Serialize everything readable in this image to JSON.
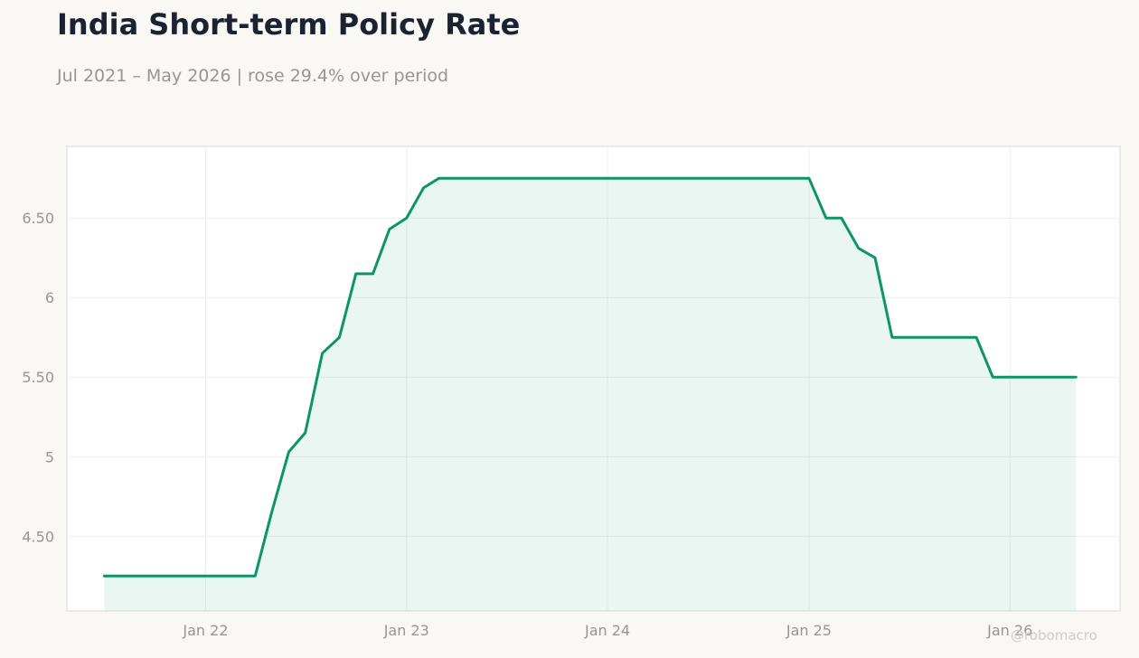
{
  "title": "India Short-term Policy Rate",
  "subtitle": "Jul 2021 – May 2026 | rose 29.4% over period",
  "watermark": "@robomacro",
  "colors": {
    "background": "#f9f8f4",
    "plot_background": "#ffffff",
    "line": "#0e9469",
    "fill": "#e9f4f0",
    "grid": "#eeeeee",
    "tick_text": "#999590",
    "title": "#1b2333"
  },
  "chart_data": {
    "type": "area",
    "title": "India Short-term Policy Rate",
    "xlabel": "",
    "ylabel": "",
    "grid": true,
    "legend": "none",
    "xlim": [
      "2021-04-24",
      "2026-07-20"
    ],
    "ylim": [
      4.03,
      6.95
    ],
    "yticks": [
      4.5,
      5,
      5.5,
      6,
      6.5
    ],
    "ytick_labels": [
      "4.50",
      "5",
      "5.50",
      "6",
      "6.50"
    ],
    "xticks": [
      "2022-01-01",
      "2023-01-01",
      "2024-01-01",
      "2025-01-01",
      "2026-01-01"
    ],
    "xtick_labels": [
      "Jan 22",
      "Jan 23",
      "Jan 24",
      "Jan 25",
      "Jan 26"
    ],
    "series": [
      {
        "values": [
          [
            "2021-07-01",
            4.25
          ],
          [
            "2022-04-01",
            4.25
          ],
          [
            "2022-05-01",
            4.65
          ],
          [
            "2022-06-01",
            5.03
          ],
          [
            "2022-07-01",
            5.15
          ],
          [
            "2022-08-01",
            5.65
          ],
          [
            "2022-09-01",
            5.75
          ],
          [
            "2022-10-01",
            6.15
          ],
          [
            "2022-11-01",
            6.15
          ],
          [
            "2022-12-01",
            6.43
          ],
          [
            "2023-01-01",
            6.5
          ],
          [
            "2023-02-01",
            6.69
          ],
          [
            "2023-03-01",
            6.75
          ],
          [
            "2025-01-01",
            6.75
          ],
          [
            "2025-02-01",
            6.5
          ],
          [
            "2025-03-01",
            6.5
          ],
          [
            "2025-04-01",
            6.31
          ],
          [
            "2025-05-01",
            6.25
          ],
          [
            "2025-06-01",
            5.75
          ],
          [
            "2025-11-01",
            5.75
          ],
          [
            "2025-12-01",
            5.5
          ],
          [
            "2026-05-01",
            5.5
          ]
        ]
      }
    ]
  }
}
